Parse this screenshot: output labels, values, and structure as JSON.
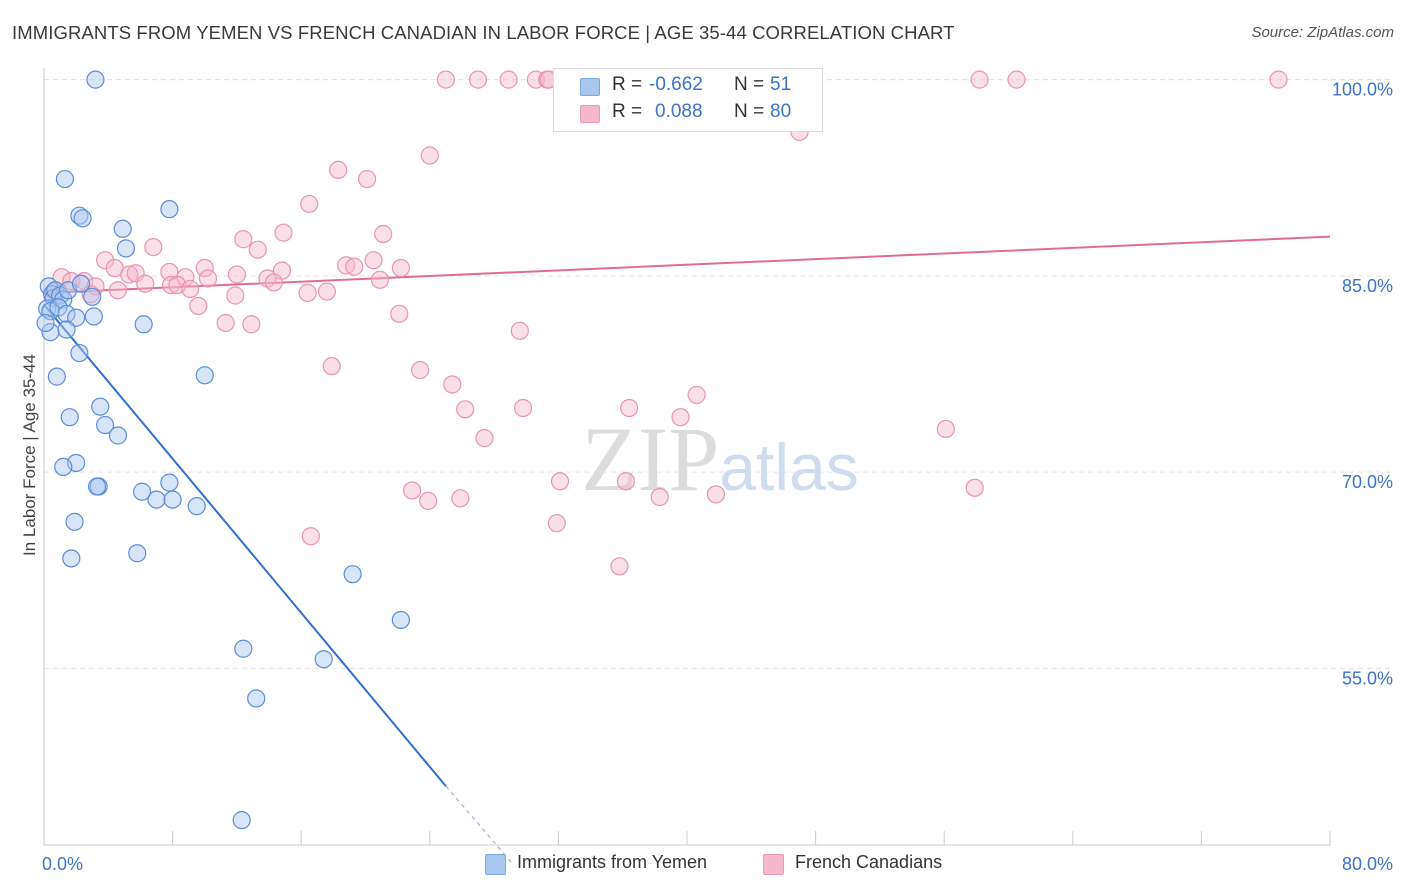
{
  "title": "IMMIGRANTS FROM YEMEN VS FRENCH CANADIAN IN LABOR FORCE | AGE 35-44 CORRELATION CHART",
  "source": "Source: ZipAtlas.com",
  "watermark": "ZIPatlas",
  "legend": {
    "r_label": "R =",
    "n_label": "N =",
    "rows": [
      {
        "r": "-0.662",
        "n": "51",
        "color": "#a9c6ef"
      },
      {
        "r": "0.088",
        "n": "80",
        "color": "#f5b8cc"
      }
    ]
  },
  "bottom_legend": [
    {
      "label": "Immigrants from Yemen",
      "color": "#a9c6ef"
    },
    {
      "label": "French Canadians",
      "color": "#f5b8cc"
    }
  ],
  "chart_data": {
    "type": "scatter",
    "title": "IMMIGRANTS FROM YEMEN VS FRENCH CANADIAN IN LABOR FORCE | AGE 35-44 CORRELATION CHART",
    "xlabel": "",
    "ylabel": "In Labor Force | Age 35-44",
    "xlim": [
      0,
      80
    ],
    "ylim": [
      41.5,
      101.5
    ],
    "x_tick_labels": [
      "0.0%",
      "80.0%"
    ],
    "y_ticks": [
      55,
      70,
      85,
      100
    ],
    "y_tick_labels": [
      "55.0%",
      "70.0%",
      "85.0%",
      "100.0%"
    ],
    "grid": true,
    "legend_position": "top-center",
    "colors": {
      "yemen_fill": "#a9c6ef",
      "yemen_stroke": "#5b8ed6",
      "yemen_line": "#2f6fd6",
      "french_fill": "#f5b8cc",
      "french_stroke": "#e994b0",
      "french_line": "#e26b93"
    },
    "series": [
      {
        "name": "Immigrants from Yemen",
        "color": "#5b8ed6",
        "r": -0.662,
        "n": 51,
        "trend": {
          "x": [
            0,
            25
          ],
          "y": [
            82.8,
            46.0
          ],
          "dash_to": [
            29.2,
            40.0
          ]
        },
        "points": [
          [
            3.2,
            100
          ],
          [
            1.3,
            92.4
          ],
          [
            2.2,
            89.6
          ],
          [
            2.4,
            89.4
          ],
          [
            7.8,
            90.1
          ],
          [
            4.9,
            88.6
          ],
          [
            5.1,
            87.1
          ],
          [
            0.3,
            84.2
          ],
          [
            0.5,
            83.6
          ],
          [
            0.6,
            83.3
          ],
          [
            0.7,
            83.9
          ],
          [
            1.0,
            83.5
          ],
          [
            1.2,
            83.2
          ],
          [
            1.5,
            83.9
          ],
          [
            0.2,
            82.5
          ],
          [
            2.3,
            84.4
          ],
          [
            3.0,
            83.4
          ],
          [
            0.4,
            82.3
          ],
          [
            0.9,
            82.6
          ],
          [
            1.4,
            82.1
          ],
          [
            2.0,
            81.8
          ],
          [
            3.1,
            81.9
          ],
          [
            6.2,
            81.3
          ],
          [
            0.4,
            80.7
          ],
          [
            1.4,
            80.9
          ],
          [
            2.2,
            79.1
          ],
          [
            0.8,
            77.3
          ],
          [
            10.0,
            77.4
          ],
          [
            1.6,
            74.2
          ],
          [
            3.5,
            75.0
          ],
          [
            3.8,
            73.6
          ],
          [
            4.6,
            72.8
          ],
          [
            2.0,
            70.7
          ],
          [
            1.2,
            70.4
          ],
          [
            3.4,
            68.9
          ],
          [
            3.3,
            68.9
          ],
          [
            6.1,
            68.5
          ],
          [
            7.8,
            69.2
          ],
          [
            7.0,
            67.9
          ],
          [
            8.0,
            67.9
          ],
          [
            9.5,
            67.4
          ],
          [
            1.9,
            66.2
          ],
          [
            1.7,
            63.4
          ],
          [
            5.8,
            63.8
          ],
          [
            19.2,
            62.2
          ],
          [
            22.2,
            58.7
          ],
          [
            12.4,
            56.5
          ],
          [
            17.4,
            55.7
          ],
          [
            13.2,
            52.7
          ],
          [
            12.3,
            43.4
          ],
          [
            0.1,
            81.4
          ]
        ]
      },
      {
        "name": "French Canadians",
        "color": "#e994b0",
        "r": 0.088,
        "n": 80,
        "trend": {
          "x": [
            0,
            80
          ],
          "y": [
            83.7,
            88.0
          ]
        },
        "points": [
          [
            25.0,
            100
          ],
          [
            27.0,
            100
          ],
          [
            28.9,
            100
          ],
          [
            30.6,
            100
          ],
          [
            31.3,
            100
          ],
          [
            31.4,
            100
          ],
          [
            33.8,
            100
          ],
          [
            34.8,
            100
          ],
          [
            36.8,
            100
          ],
          [
            37.8,
            100
          ],
          [
            58.2,
            100
          ],
          [
            60.5,
            100
          ],
          [
            76.8,
            100
          ],
          [
            47.0,
            96.0
          ],
          [
            24.0,
            94.2
          ],
          [
            18.3,
            93.1
          ],
          [
            20.1,
            92.4
          ],
          [
            16.5,
            90.5
          ],
          [
            14.9,
            88.3
          ],
          [
            21.1,
            88.2
          ],
          [
            12.4,
            87.8
          ],
          [
            13.3,
            87.0
          ],
          [
            6.8,
            87.2
          ],
          [
            3.8,
            86.2
          ],
          [
            4.4,
            85.6
          ],
          [
            10.0,
            85.6
          ],
          [
            14.8,
            85.4
          ],
          [
            7.8,
            85.3
          ],
          [
            18.8,
            85.8
          ],
          [
            19.3,
            85.7
          ],
          [
            20.5,
            86.2
          ],
          [
            22.2,
            85.6
          ],
          [
            5.3,
            85.1
          ],
          [
            5.7,
            85.2
          ],
          [
            12.0,
            85.1
          ],
          [
            13.9,
            84.8
          ],
          [
            8.8,
            84.9
          ],
          [
            10.2,
            84.8
          ],
          [
            14.3,
            84.5
          ],
          [
            20.9,
            84.7
          ],
          [
            1.1,
            84.9
          ],
          [
            1.7,
            84.6
          ],
          [
            2.5,
            84.6
          ],
          [
            3.2,
            84.2
          ],
          [
            6.3,
            84.4
          ],
          [
            7.9,
            84.3
          ],
          [
            4.6,
            83.9
          ],
          [
            8.3,
            84.3
          ],
          [
            9.1,
            84.0
          ],
          [
            11.9,
            83.5
          ],
          [
            16.4,
            83.7
          ],
          [
            17.6,
            83.8
          ],
          [
            2.9,
            83.6
          ],
          [
            0.6,
            83.8
          ],
          [
            9.6,
            82.7
          ],
          [
            22.1,
            82.1
          ],
          [
            11.3,
            81.4
          ],
          [
            12.9,
            81.3
          ],
          [
            29.6,
            80.8
          ],
          [
            17.9,
            78.1
          ],
          [
            23.4,
            77.8
          ],
          [
            25.4,
            76.7
          ],
          [
            40.6,
            75.9
          ],
          [
            26.2,
            74.8
          ],
          [
            29.8,
            74.9
          ],
          [
            36.4,
            74.9
          ],
          [
            39.6,
            74.2
          ],
          [
            56.1,
            73.3
          ],
          [
            27.4,
            72.6
          ],
          [
            36.2,
            69.3
          ],
          [
            32.1,
            69.3
          ],
          [
            22.9,
            68.6
          ],
          [
            41.8,
            68.3
          ],
          [
            38.3,
            68.1
          ],
          [
            57.9,
            68.8
          ],
          [
            23.9,
            67.8
          ],
          [
            25.9,
            68.0
          ],
          [
            31.9,
            66.1
          ],
          [
            16.6,
            65.1
          ],
          [
            35.8,
            62.8
          ]
        ]
      }
    ]
  }
}
